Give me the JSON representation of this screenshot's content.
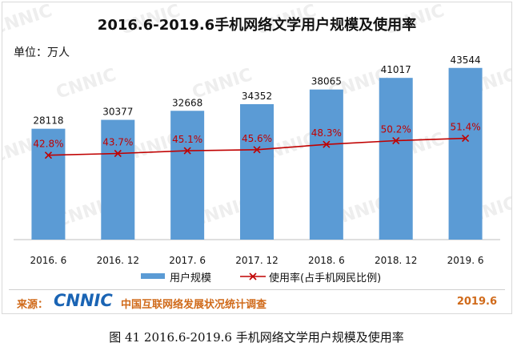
{
  "watermark_text": "CNNIC",
  "unit_label": "单位：万人",
  "source": {
    "label": "来源：",
    "logo_text": "CNNIC",
    "org": "中国互联网络发展状况统计调查",
    "date": "2019.6"
  },
  "caption": "图  41  2016.6-2019.6 手机网络文学用户规模及使用率",
  "colors": {
    "bar": "#5b9bd5",
    "line": "#c00000",
    "rate_label": "#c00000",
    "source": "#d06a1a",
    "cnnic_blue": "#1a64b4"
  },
  "chart_data": {
    "type": "bar",
    "title": "2016.6-2019.6手机网络文学用户规模及使用率",
    "categories": [
      "2016. 6",
      "2016. 12",
      "2017. 6",
      "2017. 12",
      "2018. 6",
      "2018. 12",
      "2019. 6"
    ],
    "series": [
      {
        "name": "用户规模",
        "type": "bar",
        "values": [
          28118,
          30377,
          32668,
          34352,
          38065,
          41017,
          43544
        ]
      },
      {
        "name": "使用率(占手机网民比例)",
        "type": "line",
        "values": [
          42.8,
          43.7,
          45.1,
          45.6,
          48.3,
          50.2,
          51.4
        ],
        "labels": [
          "42.8%",
          "43.7%",
          "45.1%",
          "45.6%",
          "48.3%",
          "50.2%",
          "51.4%"
        ]
      }
    ],
    "bar_ylim": [
      0,
      50000
    ],
    "line_ylim": [
      0,
      100
    ],
    "grid": false,
    "legend_position": "bottom"
  }
}
